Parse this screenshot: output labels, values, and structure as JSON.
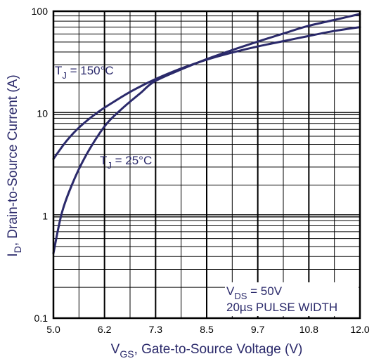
{
  "chart_data": {
    "type": "line",
    "xlabel": {
      "main": "V",
      "sub": "GS",
      "rest": ", Gate-to-Source Voltage (V)"
    },
    "ylabel": {
      "main": "I",
      "sub": "D",
      "rest": ",  Drain-to-Source Current (A)"
    },
    "x_ticks": [
      "5.0",
      "6.2",
      "7.3",
      "8.5",
      "9.7",
      "10.8",
      "12.0"
    ],
    "y_ticks": [
      "0.1",
      "1",
      "10",
      "100"
    ],
    "xlim": [
      5.0,
      12.0
    ],
    "ylim": [
      0.1,
      100
    ],
    "y_scale": "log",
    "grid": true,
    "series": [
      {
        "name": {
          "pre": "T",
          "sub": "J",
          "post": " = 150°C"
        },
        "x": [
          5.0,
          5.3,
          5.6,
          6.0,
          6.4,
          6.8,
          7.3,
          7.9,
          8.5,
          9.1,
          9.7,
          10.3,
          10.8,
          11.4,
          12.0
        ],
        "y": [
          3.6,
          5.4,
          7.4,
          10.2,
          13.2,
          16.7,
          21.4,
          27.4,
          33.6,
          39.6,
          45.6,
          51.5,
          57.0,
          64.0,
          70.0
        ]
      },
      {
        "name": {
          "pre": "T",
          "sub": "J",
          "post": " = 25°C"
        },
        "x": [
          5.0,
          5.2,
          5.5,
          5.8,
          6.2,
          6.6,
          7.0,
          7.3,
          7.9,
          8.5,
          9.1,
          9.7,
          10.3,
          10.8,
          11.4,
          12.0
        ],
        "y": [
          0.43,
          1.1,
          2.4,
          4.3,
          7.8,
          11.5,
          16.0,
          20.5,
          26.8,
          34.0,
          42.0,
          51.0,
          61.5,
          71.5,
          82.0,
          94.0
        ]
      }
    ],
    "annotation": {
      "line1": {
        "pre": "V",
        "sub": "DS",
        "post": "  = 50V"
      },
      "line2": "20µs PULSE WIDTH"
    },
    "line_color": "#2b2a6b"
  }
}
